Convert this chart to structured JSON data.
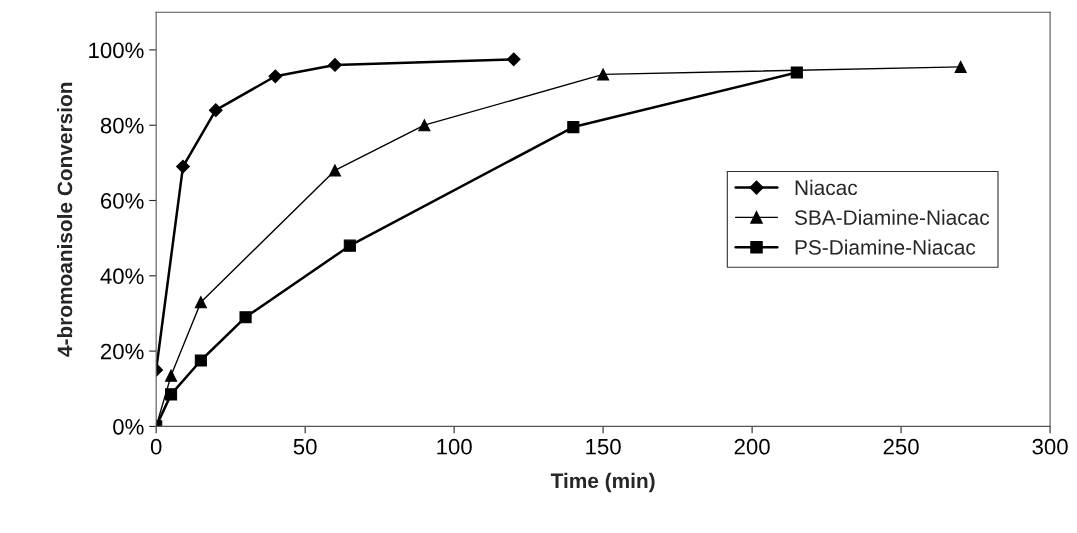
{
  "chart_data": {
    "type": "line",
    "xlabel": "Time (min)",
    "ylabel": "4-bromoanisole Conversion",
    "xlim": [
      0,
      300
    ],
    "xticks": [
      0,
      50,
      100,
      150,
      200,
      250,
      300
    ],
    "ylim": [
      0,
      110
    ],
    "yticks": [
      {
        "value": 0,
        "label": "0%"
      },
      {
        "value": 20,
        "label": "20%"
      },
      {
        "value": 40,
        "label": "40%"
      },
      {
        "value": 60,
        "label": "60%"
      },
      {
        "value": 80,
        "label": "80%"
      },
      {
        "value": 100,
        "label": "100%"
      }
    ],
    "grid": false,
    "legend": "right",
    "series": [
      {
        "name": "Niacac",
        "color": "#000000",
        "marker": "diamond",
        "x": [
          0,
          9,
          20,
          40,
          60,
          120
        ],
        "values": [
          15,
          69,
          84,
          93,
          96,
          97.5
        ]
      },
      {
        "name": "SBA-Diamine-Niacac",
        "color": "#000000",
        "marker": "triangle",
        "x": [
          0,
          5,
          15,
          60,
          90,
          150,
          270
        ],
        "values": [
          0,
          13.5,
          33,
          68,
          80,
          93.5,
          95.5
        ]
      },
      {
        "name": "PS-Diamine-Niacac",
        "color": "#000000",
        "marker": "square",
        "x": [
          0,
          5,
          15,
          30,
          65,
          140,
          215
        ],
        "values": [
          0,
          8.5,
          17.5,
          29,
          48,
          79.5,
          94
        ]
      }
    ]
  }
}
